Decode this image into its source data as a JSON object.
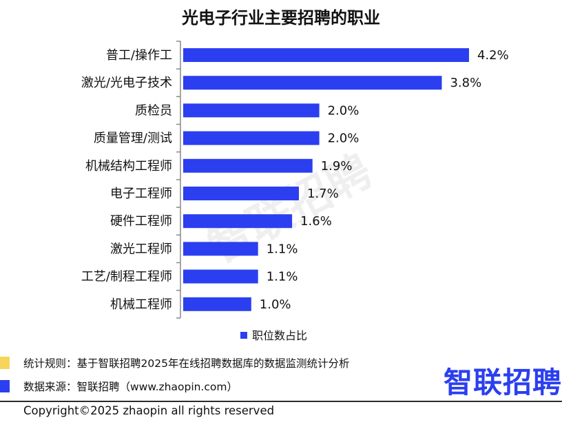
{
  "chart_data": {
    "type": "bar",
    "orientation": "horizontal",
    "title": "光电子行业主要招聘的职业",
    "categories": [
      "普工/操作工",
      "激光/光电子技术",
      "质检员",
      "质量管理/测试",
      "机械结构工程师",
      "电子工程师",
      "硬件工程师",
      "激光工程师",
      "工艺/制程工程师",
      "机械工程师"
    ],
    "series": [
      {
        "name": "职位数占比",
        "values": [
          4.2,
          3.8,
          2.0,
          2.0,
          1.9,
          1.7,
          1.6,
          1.1,
          1.1,
          1.0
        ],
        "labels": [
          "4.2%",
          "3.8%",
          "2.0%",
          "2.0%",
          "1.9%",
          "1.7%",
          "1.6%",
          "1.1%",
          "1.1%",
          "1.0%"
        ]
      }
    ],
    "xlim": [
      0,
      4.2
    ],
    "grid": false,
    "legend": "bottom"
  },
  "colors": {
    "bar": "#2b3ff0",
    "axis": "#888888",
    "note_rule_marker": "#f7d55c",
    "note_source_marker": "#2b3ff0",
    "brand": "#2b3ff0"
  },
  "watermark": "智联招聘",
  "notes": {
    "rule": "统计规则：基于智联招聘2025年在线招聘数据库的数据监测统计分析",
    "source": "数据来源：智联招聘（www.zhaopin.com）"
  },
  "brand": "智联招聘",
  "copyright": "Copyright©2025 zhaopin all rights reserved"
}
